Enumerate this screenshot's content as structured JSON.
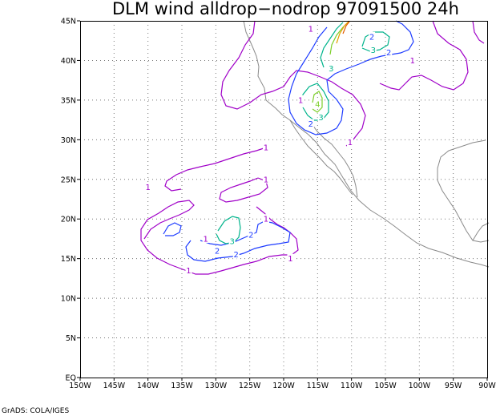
{
  "title": "DLM wind alldrop−nodrop 97091500 24h",
  "credit": "GrADS: COLA/IGES",
  "map": {
    "lon_ticks": [
      "150W",
      "145W",
      "140W",
      "135W",
      "130W",
      "125W",
      "120W",
      "115W",
      "110W",
      "105W",
      "100W",
      "95W",
      "90W"
    ],
    "lat_ticks": [
      "EQ",
      "5N",
      "10N",
      "15N",
      "20N",
      "25N",
      "30N",
      "35N",
      "40N",
      "45N"
    ],
    "lon_range": [
      -150,
      -90
    ],
    "lat_range": [
      0,
      45
    ],
    "grid": true
  },
  "contour_levels": [
    {
      "level": "1",
      "color": "#a000c8"
    },
    {
      "level": "2",
      "color": "#1e3cff"
    },
    {
      "level": "3",
      "color": "#00b48c"
    },
    {
      "level": "4",
      "color": "#7dcf2a"
    },
    {
      "level": "5",
      "color": "#e6a000"
    },
    {
      "level": "6",
      "color": "#e05a00"
    }
  ],
  "contour_labels": [
    {
      "text": "1",
      "lon": -116.0,
      "lat": 44.0,
      "color": "#a000c8"
    },
    {
      "text": "1",
      "lon": -117.5,
      "lat": 35.0,
      "color": "#a000c8"
    },
    {
      "text": "1",
      "lon": -122.6,
      "lat": 29.0,
      "color": "#a000c8"
    },
    {
      "text": "1",
      "lon": -122.6,
      "lat": 25.0,
      "color": "#a000c8"
    },
    {
      "text": "1",
      "lon": -140.0,
      "lat": 24.0,
      "color": "#a000c8"
    },
    {
      "text": "1",
      "lon": -122.6,
      "lat": 20.0,
      "color": "#a000c8"
    },
    {
      "text": "1",
      "lon": -131.5,
      "lat": 17.5,
      "color": "#a000c8"
    },
    {
      "text": "1",
      "lon": -134.0,
      "lat": 13.5,
      "color": "#a000c8"
    },
    {
      "text": "1",
      "lon": -119.0,
      "lat": 15.0,
      "color": "#a000c8"
    },
    {
      "text": "1",
      "lon": -110.2,
      "lat": 29.7,
      "color": "#a000c8"
    },
    {
      "text": "1",
      "lon": -101.0,
      "lat": 40.0,
      "color": "#a000c8"
    },
    {
      "text": "2",
      "lon": -129.8,
      "lat": 16.0,
      "color": "#1e3cff"
    },
    {
      "text": "2",
      "lon": -127.0,
      "lat": 15.5,
      "color": "#1e3cff"
    },
    {
      "text": "2",
      "lon": -124.8,
      "lat": 18.0,
      "color": "#1e3cff"
    },
    {
      "text": "2",
      "lon": -116.0,
      "lat": 32.0,
      "color": "#1e3cff"
    },
    {
      "text": "2",
      "lon": -107.0,
      "lat": 43.0,
      "color": "#1e3cff"
    },
    {
      "text": "2",
      "lon": -104.5,
      "lat": 41.0,
      "color": "#1e3cff"
    },
    {
      "text": "3",
      "lon": -127.6,
      "lat": 17.2,
      "color": "#00b48c"
    },
    {
      "text": "3",
      "lon": -114.5,
      "lat": 32.8,
      "color": "#00b48c"
    },
    {
      "text": "3",
      "lon": -113.0,
      "lat": 39.0,
      "color": "#00b48c"
    },
    {
      "text": "3",
      "lon": -106.8,
      "lat": 41.3,
      "color": "#00b48c"
    },
    {
      "text": "4",
      "lon": -115.0,
      "lat": 34.5,
      "color": "#7dcf2a"
    }
  ]
}
